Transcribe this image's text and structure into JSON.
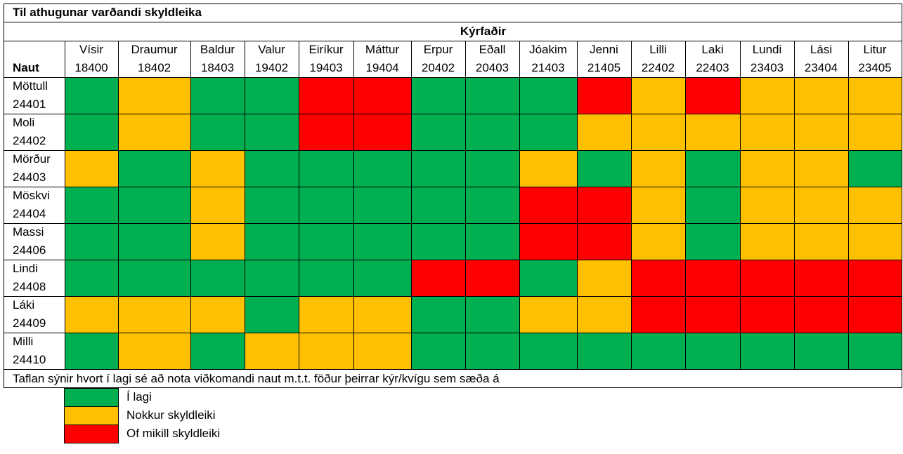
{
  "title": "Til athugunar varðandi skyldleika",
  "group_header": "Kýrfaðir",
  "row_header": "Naut",
  "columns": [
    {
      "name": "Vísir",
      "id": "18400"
    },
    {
      "name": "Draumur",
      "id": "18402"
    },
    {
      "name": "Baldur",
      "id": "18403"
    },
    {
      "name": "Valur",
      "id": "19402"
    },
    {
      "name": "Eiríkur",
      "id": "19403"
    },
    {
      "name": "Máttur",
      "id": "19404"
    },
    {
      "name": "Erpur",
      "id": "20402"
    },
    {
      "name": "Eðall",
      "id": "20403"
    },
    {
      "name": "Jóakim",
      "id": "21403"
    },
    {
      "name": "Jenni",
      "id": "21405"
    },
    {
      "name": "Lilli",
      "id": "22402"
    },
    {
      "name": "Laki",
      "id": "22403"
    },
    {
      "name": "Lundi",
      "id": "23403"
    },
    {
      "name": "Lási",
      "id": "23404"
    },
    {
      "name": "Litur",
      "id": "23405"
    }
  ],
  "rows": [
    {
      "name": "Möttull",
      "id": "24401",
      "cells": [
        "#00b050",
        "#ffc000",
        "#00b050",
        "#00b050",
        "#ff0000",
        "#ff0000",
        "#00b050",
        "#00b050",
        "#00b050",
        "#ff0000",
        "#ffc000",
        "#ff0000",
        "#ffc000",
        "#ffc000",
        "#ffc000"
      ]
    },
    {
      "name": "Moli",
      "id": "24402",
      "cells": [
        "#00b050",
        "#ffc000",
        "#00b050",
        "#00b050",
        "#ff0000",
        "#ff0000",
        "#00b050",
        "#00b050",
        "#00b050",
        "#ffc000",
        "#ffc000",
        "#ffc000",
        "#ffc000",
        "#ffc000",
        "#ffc000"
      ]
    },
    {
      "name": "Mörður",
      "id": "24403",
      "cells": [
        "#ffc000",
        "#00b050",
        "#ffc000",
        "#00b050",
        "#00b050",
        "#00b050",
        "#00b050",
        "#00b050",
        "#ffc000",
        "#00b050",
        "#ffc000",
        "#00b050",
        "#ffc000",
        "#ffc000",
        "#00b050"
      ]
    },
    {
      "name": "Möskvi",
      "id": "24404",
      "cells": [
        "#00b050",
        "#00b050",
        "#ffc000",
        "#00b050",
        "#00b050",
        "#00b050",
        "#00b050",
        "#00b050",
        "#ff0000",
        "#ff0000",
        "#ffc000",
        "#00b050",
        "#ffc000",
        "#ffc000",
        "#ffc000"
      ]
    },
    {
      "name": "Massi",
      "id": "24406",
      "cells": [
        "#00b050",
        "#00b050",
        "#ffc000",
        "#00b050",
        "#00b050",
        "#00b050",
        "#00b050",
        "#00b050",
        "#ff0000",
        "#ff0000",
        "#ffc000",
        "#00b050",
        "#ffc000",
        "#ffc000",
        "#ffc000"
      ]
    },
    {
      "name": "Lindi",
      "id": "24408",
      "cells": [
        "#00b050",
        "#00b050",
        "#00b050",
        "#00b050",
        "#00b050",
        "#00b050",
        "#ff0000",
        "#ff0000",
        "#00b050",
        "#ffc000",
        "#ff0000",
        "#ff0000",
        "#ff0000",
        "#ff0000",
        "#ff0000"
      ]
    },
    {
      "name": "Láki",
      "id": "24409",
      "cells": [
        "#ffc000",
        "#ffc000",
        "#ffc000",
        "#00b050",
        "#ffc000",
        "#ffc000",
        "#00b050",
        "#00b050",
        "#ffc000",
        "#ffc000",
        "#ff0000",
        "#ff0000",
        "#ff0000",
        "#ff0000",
        "#ff0000"
      ]
    },
    {
      "name": "Milli",
      "id": "24410",
      "cells": [
        "#00b050",
        "#ffc000",
        "#00b050",
        "#ffc000",
        "#ffc000",
        "#ffc000",
        "#00b050",
        "#00b050",
        "#00b050",
        "#00b050",
        "#00b050",
        "#00b050",
        "#00b050",
        "#00b050",
        "#00b050"
      ]
    }
  ],
  "footnote": "Taflan sýnir hvort í lagi sé að nota viðkomandi naut m.t.t. föður þeirrar kýr/kvígu sem sæða á",
  "legend": [
    {
      "color": "#00b050",
      "label": "Í lagi"
    },
    {
      "color": "#ffc000",
      "label": "Nokkur skyldleiki"
    },
    {
      "color": "#ff0000",
      "label": "Of mikill skyldleiki"
    }
  ]
}
